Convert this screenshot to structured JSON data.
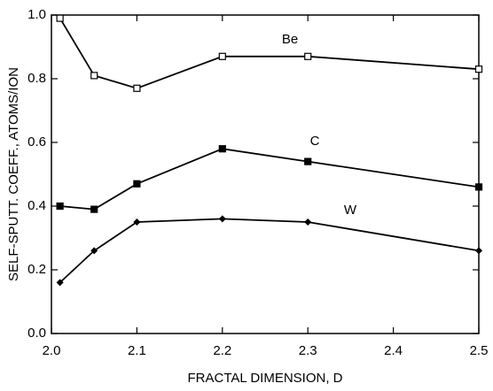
{
  "chart_data": {
    "type": "line",
    "xlabel": "FRACTAL DIMENSION, D",
    "ylabel": "SELF-SPUTT. COEFF., ATOMS/ION",
    "x": [
      2.01,
      2.05,
      2.1,
      2.2,
      2.3,
      2.5
    ],
    "series": [
      {
        "name": "Be",
        "color": "#000000",
        "marker": "open-square",
        "values": [
          0.99,
          0.81,
          0.77,
          0.87,
          0.87,
          0.83
        ]
      },
      {
        "name": "C",
        "color": "#000000",
        "marker": "filled-square",
        "values": [
          0.4,
          0.39,
          0.47,
          0.58,
          0.54,
          0.46
        ]
      },
      {
        "name": "W",
        "color": "#000000",
        "marker": "filled-diamond",
        "values": [
          0.16,
          0.26,
          0.35,
          0.36,
          0.35,
          0.26
        ]
      }
    ],
    "xlim": [
      2.0,
      2.5
    ],
    "xticks": [
      {
        "value": 2,
        "label": "2.0"
      },
      2.1,
      2.2,
      2.3,
      2.4,
      2.5
    ],
    "ylim": [
      0,
      1
    ],
    "yticks": [
      {
        "value": 0,
        "label": "0.0"
      },
      0.2,
      0.4,
      0.6,
      0.8,
      {
        "value": 1,
        "label": "1.0"
      }
    ],
    "grid": false
  }
}
